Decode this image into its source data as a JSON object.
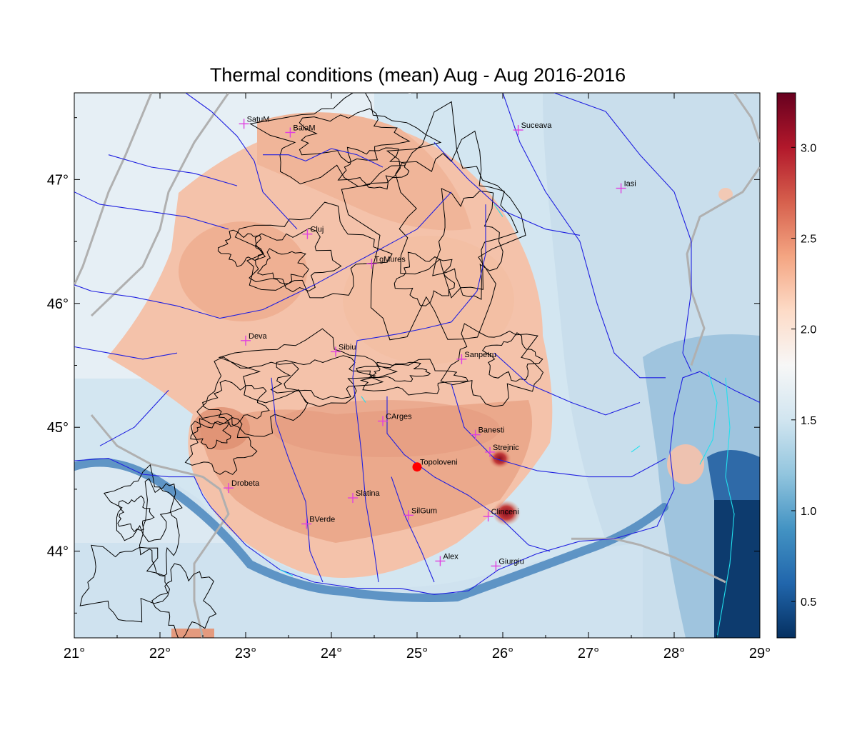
{
  "title": "Thermal conditions (mean) Aug - Aug  2016-2016",
  "map": {
    "lon_range": [
      21,
      29
    ],
    "lat_range": [
      43.3,
      47.7
    ],
    "lon_ticks": [
      21,
      22,
      23,
      24,
      25,
      26,
      27,
      28,
      29
    ],
    "lat_ticks": [
      44,
      45,
      46,
      47
    ],
    "lon_tick_labels": [
      "21°",
      "22°",
      "23°",
      "24°",
      "25°",
      "26°",
      "27°",
      "28°",
      "29°"
    ],
    "lat_tick_labels": [
      "44°",
      "45°",
      "46°",
      "47°"
    ],
    "marker_color": "#e040e0",
    "highlight_color": "#ff0000",
    "river_color": "#2020e0",
    "border_color": "#b0b0b0",
    "contour_color": "#000000"
  },
  "colorbar": {
    "range": [
      0.3,
      3.3
    ],
    "ticks": [
      0.5,
      1.0,
      1.5,
      2.0,
      2.5,
      3.0
    ],
    "tick_labels": [
      "0.5",
      "1.0",
      "1.5",
      "2.0",
      "2.5",
      "3.0"
    ],
    "colors": [
      "#053061",
      "#2166ac",
      "#4393c3",
      "#92c5de",
      "#d1e5f0",
      "#f7f7f7",
      "#fddbc7",
      "#f4a582",
      "#d6604d",
      "#b2182b",
      "#67001f"
    ]
  },
  "stations": [
    {
      "name": "SatuM",
      "lon": 22.98,
      "lat": 47.45
    },
    {
      "name": "BaiaM",
      "lon": 23.52,
      "lat": 47.38
    },
    {
      "name": "Suceava",
      "lon": 26.18,
      "lat": 47.4
    },
    {
      "name": "Iasi",
      "lon": 27.38,
      "lat": 46.93
    },
    {
      "name": "Cluj",
      "lon": 23.72,
      "lat": 46.56
    },
    {
      "name": "TgMures",
      "lon": 24.47,
      "lat": 46.32
    },
    {
      "name": "Deva",
      "lon": 23.0,
      "lat": 45.7
    },
    {
      "name": "Sibiu",
      "lon": 24.05,
      "lat": 45.61
    },
    {
      "name": "Sanpetru",
      "lon": 25.52,
      "lat": 45.55
    },
    {
      "name": "CArges",
      "lon": 24.6,
      "lat": 45.05
    },
    {
      "name": "Banesti",
      "lon": 25.68,
      "lat": 44.94
    },
    {
      "name": "Strejnic",
      "lon": 25.85,
      "lat": 44.8
    },
    {
      "name": "Topoloveni",
      "lon": 25.0,
      "lat": 44.68,
      "highlight": true
    },
    {
      "name": "Drobeta",
      "lon": 22.8,
      "lat": 44.51
    },
    {
      "name": "Slatina",
      "lon": 24.25,
      "lat": 44.43
    },
    {
      "name": "SilGum",
      "lon": 24.9,
      "lat": 44.29
    },
    {
      "name": "BVerde",
      "lon": 23.71,
      "lat": 44.22
    },
    {
      "name": "Clinceni",
      "lon": 25.83,
      "lat": 44.28
    },
    {
      "name": "Alex",
      "lon": 25.27,
      "lat": 43.92
    },
    {
      "name": "Giurgiu",
      "lon": 25.92,
      "lat": 43.88
    }
  ]
}
